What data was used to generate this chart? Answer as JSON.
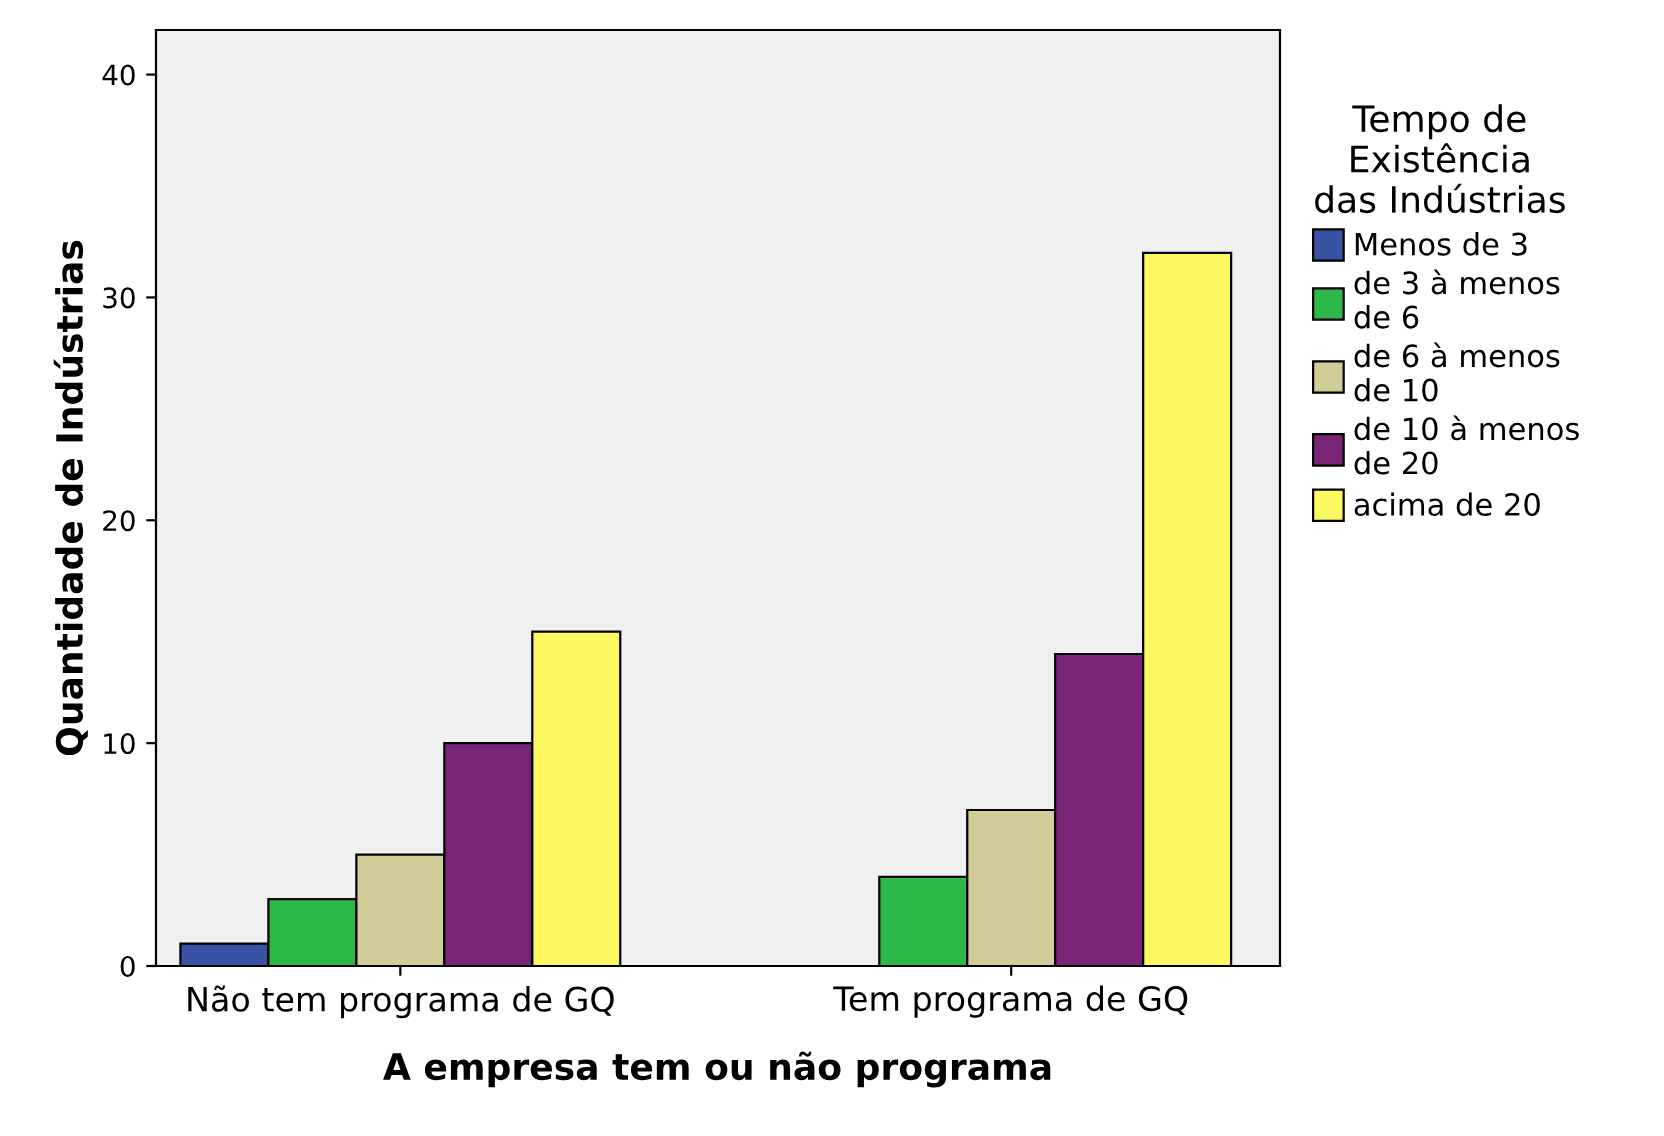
{
  "chart_data": {
    "type": "bar",
    "xlabel": "A empresa tem ou não programa",
    "ylabel": "Quantidade de Indústrias",
    "legend_title": "Tempo de\nExistência\ndas Indústrias",
    "legend": "right",
    "grid": false,
    "categories": [
      "Não tem programa de GQ",
      "Tem programa de GQ"
    ],
    "ylim": [
      0,
      42
    ],
    "yticks": [
      0,
      10,
      20,
      30,
      40
    ],
    "series": [
      {
        "name": "Menos de 3",
        "color": "#3953a4",
        "values": [
          1,
          null
        ]
      },
      {
        "name": "de 3 à menos\nde 6",
        "color": "#2db84a",
        "values": [
          3,
          4
        ]
      },
      {
        "name": "de 6 à menos\nde 10",
        "color": "#d2cc98",
        "values": [
          5,
          7
        ]
      },
      {
        "name": "de 10 à menos\nde 20",
        "color": "#7a2478",
        "values": [
          10,
          14
        ]
      },
      {
        "name": "acima de 20",
        "color": "#fbf861",
        "values": [
          15,
          32
        ]
      }
    ]
  }
}
